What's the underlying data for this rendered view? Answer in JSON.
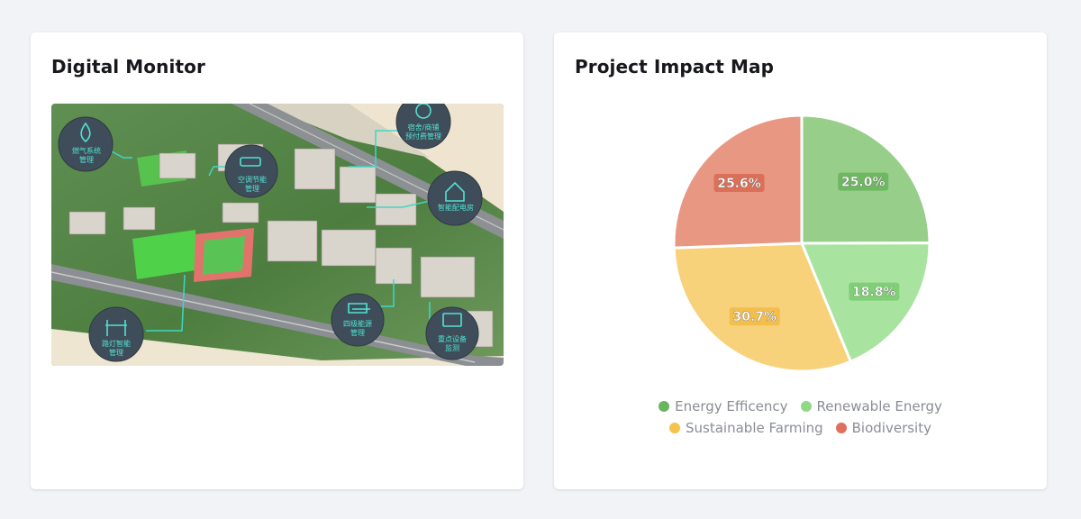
{
  "left_card": {
    "title": "Digital Monitor",
    "callouts": [
      {
        "label": "燃气系统\n管理",
        "icon": "flame-icon"
      },
      {
        "label": "空调节能\n管理",
        "icon": "air-conditioner-icon"
      },
      {
        "label": "宿舍/商铺\n预付费管理",
        "icon": "yuan-refresh-icon"
      },
      {
        "label": "智能配电房",
        "icon": "house-power-icon"
      },
      {
        "label": "路灯智能\n管理",
        "icon": "streetlight-icon"
      },
      {
        "label": "四级能源\n管理",
        "icon": "layers-icon"
      },
      {
        "label": "重点设备\n监测",
        "icon": "monitor-icon"
      }
    ]
  },
  "right_card": {
    "title": "Project Impact Map",
    "chart_data": {
      "type": "pie",
      "title": "",
      "categories": [
        "Energy Efficency",
        "Renewable Energy",
        "Sustainable Farming",
        "Biodiversity"
      ],
      "values": [
        25.0,
        18.8,
        30.7,
        25.6
      ],
      "labels": [
        "25.0%",
        "18.8%",
        "30.7%",
        "25.6%"
      ],
      "colors": [
        "#97cf8a",
        "#a8e3a0",
        "#f7d27a",
        "#e89783"
      ],
      "label_colors": [
        "#6fb862",
        "#7fcf75",
        "#f2be4c",
        "#dc6f58"
      ],
      "legend_colors": [
        "#6ab45f",
        "#8fd887",
        "#f5c24c",
        "#e0705c"
      ],
      "legend_position": "bottom"
    }
  }
}
